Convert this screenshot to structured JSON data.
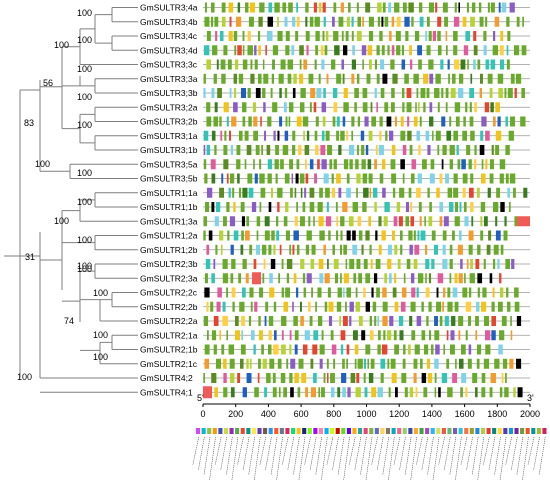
{
  "genes": [
    "GmSULTR3;4a",
    "GmSULTR3;4b",
    "GmSULTR3;4c",
    "GmSULTR3;4d",
    "GmSULTR3;3c",
    "GmSULTR3;3a",
    "GmSULTR3;3b",
    "GmSULTR3;2a",
    "GmSULTR3;2b",
    "GmSULTR3;1a",
    "GmSULTR3;1b",
    "GmSULTR3;5a",
    "GmSULTR3;5b",
    "GmSULTR1;1a",
    "GmSULTR1;1b",
    "GmSULTR1;3a",
    "GmSULTR1;2a",
    "GmSULTR1;2b",
    "GmSULTR2;3b",
    "GmSULTR2;3a",
    "GmSULTR2;2c",
    "GmSULTR2;2b",
    "GmSULTR2;2a",
    "GmSULTR2;1a",
    "GmSULTR2;1b",
    "GmSULTR2;1c",
    "GmSULTR4;2",
    "GmSULTR4;1"
  ],
  "bootstrap_labels": [
    "100",
    "100",
    "100",
    "100",
    "100",
    "100",
    "56",
    "83",
    "100",
    "100",
    "100",
    "100",
    "100",
    "100",
    "100",
    "31",
    "100",
    "100",
    "74",
    "100",
    "100"
  ],
  "axis": {
    "start_label": "5'",
    "end_label": "3'",
    "min": 0,
    "max": 2000,
    "ticks": [
      "0",
      "200",
      "400",
      "600",
      "800",
      "1000",
      "1200",
      "1400",
      "1600",
      "1800",
      "2000"
    ]
  },
  "legend": {
    "colors": [
      "#e040fb",
      "#00bcd4",
      "#8bc34a",
      "#ff9800",
      "#3f51b5",
      "#cddc39",
      "#9c27b0",
      "#4caf50",
      "#f44336",
      "#009688",
      "#ffeb3b",
      "#673ab7",
      "#795548",
      "#2196f3",
      "#ff5722",
      "#607d8b",
      "#e91e63",
      "#00e676",
      "#ffc107",
      "#1a237e",
      "#76ff03",
      "#aa00ff",
      "#ff80ab",
      "#00b0ff",
      "#c6ff00",
      "#d50000",
      "#64dd17",
      "#6200ea",
      "#ffab00",
      "#26a69a",
      "#ec407a",
      "#7cb342",
      "#5c6bc0",
      "#ffd54f",
      "#8d6e63",
      "#00acc1",
      "#f06292",
      "#9ccc65",
      "#3949ab",
      "#ffa726",
      "#43a047",
      "#ab47bc",
      "#29b6f6",
      "#d4e157",
      "#ef5350",
      "#66bb6a",
      "#7e57c2",
      "#26c6da",
      "#ff7043",
      "#9e9d24",
      "#1e88e5",
      "#c0ca33",
      "#e53935",
      "#00897b",
      "#fdd835",
      "#5e35b1",
      "#039be5",
      "#7b1fa2",
      "#689f38",
      "#f4511e",
      "#0097a7",
      "#afb42b",
      "#d81b60"
    ]
  }
}
